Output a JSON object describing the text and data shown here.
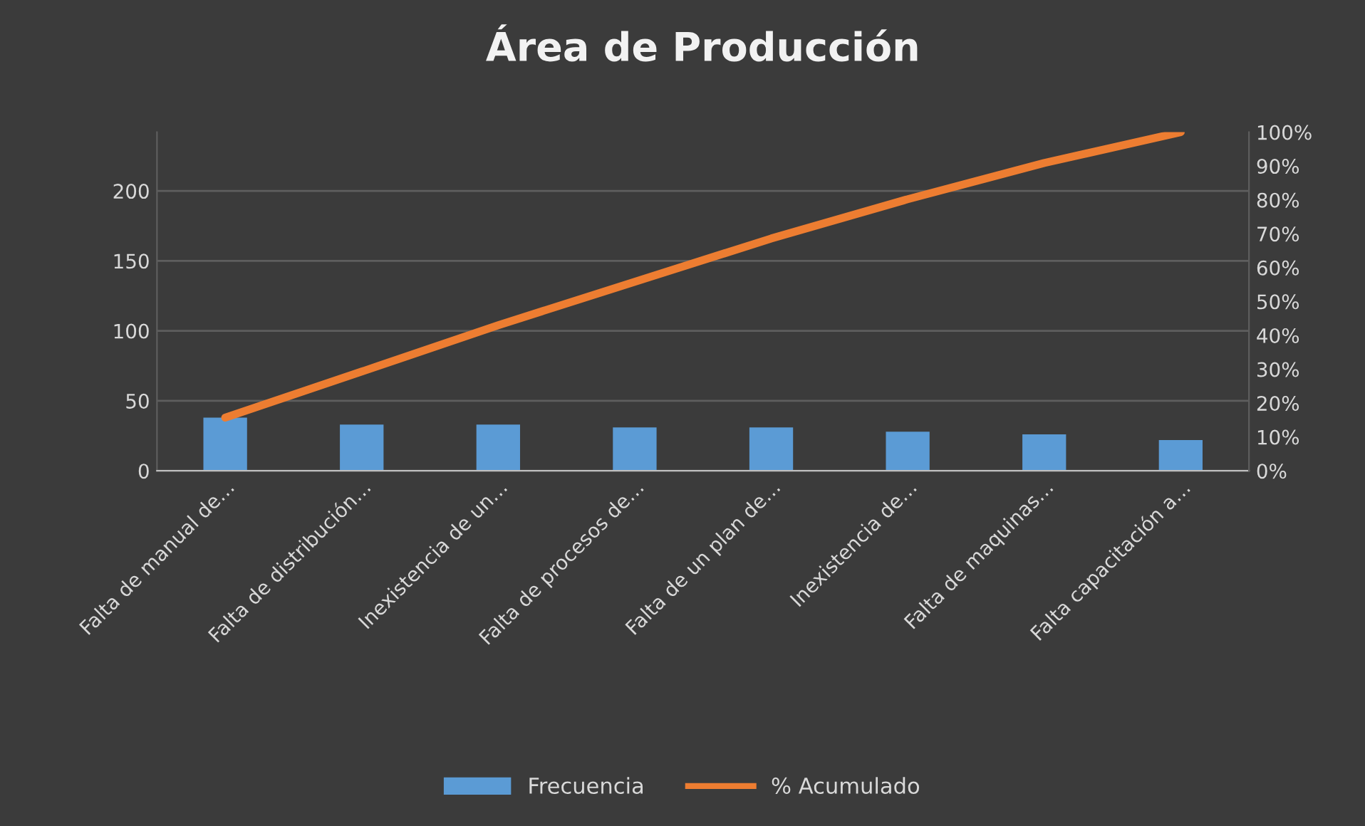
{
  "chart_data": {
    "type": "bar",
    "title": "Área de Producción",
    "categories": [
      "Falta de manual de…",
      "Falta de distribución…",
      "Inexistencia de un…",
      "Falta de procesos de…",
      "Falta de un plan de…",
      "Inexistencia de…",
      "Falta de maquinas…",
      "Falta capacitación a…"
    ],
    "series": [
      {
        "name": "Frecuencia",
        "color": "#5b9bd5",
        "values": [
          38,
          33,
          33,
          31,
          31,
          28,
          26,
          22
        ]
      },
      {
        "name": "% Acumulado",
        "type": "line",
        "axis": "y2",
        "color": "#ed7d31",
        "values": [
          15.7,
          29.3,
          43.0,
          55.8,
          68.6,
          80.2,
          90.9,
          100
        ]
      }
    ],
    "ylim": [
      0,
      242
    ],
    "yticks": [
      0,
      50,
      100,
      150,
      200
    ],
    "y2lim": [
      0,
      100
    ],
    "y2ticks": [
      {
        "value": 0,
        "label": "0%"
      },
      {
        "value": 10,
        "label": "10%"
      },
      {
        "value": 20,
        "label": "20%"
      },
      {
        "value": 30,
        "label": "30%"
      },
      {
        "value": 40,
        "label": "40%"
      },
      {
        "value": 50,
        "label": "50%"
      },
      {
        "value": 60,
        "label": "60%"
      },
      {
        "value": 70,
        "label": "70%"
      },
      {
        "value": 80,
        "label": "80%"
      },
      {
        "value": 90,
        "label": "90%"
      },
      {
        "value": 100,
        "label": "100%"
      }
    ],
    "grid": "y",
    "legend": "bottom",
    "marker": "none"
  }
}
